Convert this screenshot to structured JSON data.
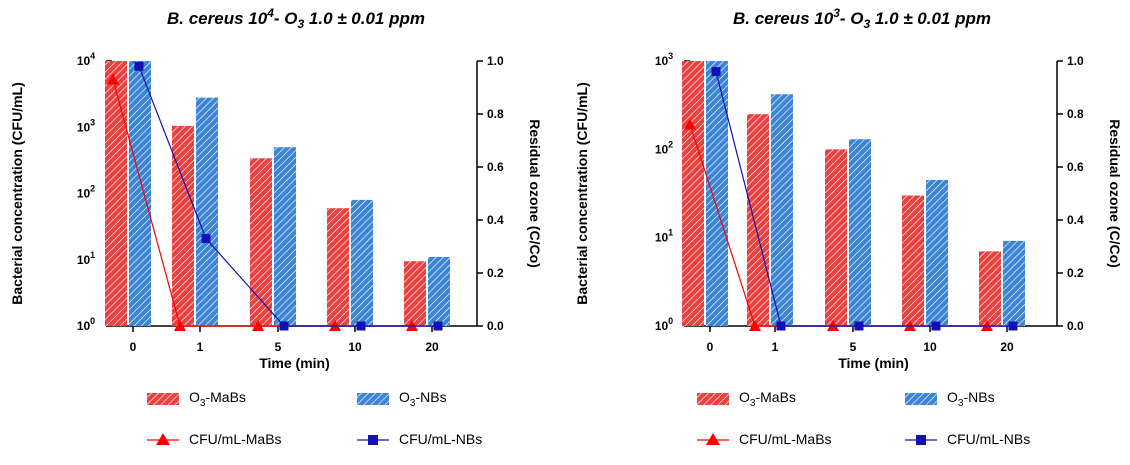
{
  "colors": {
    "mabs": "#e8413f",
    "nbs": "#3b84d6",
    "nbs_line": "#1212b4",
    "mabs_line": "#ff0000",
    "axis": "#000000"
  },
  "chart_data": [
    {
      "type": "bar",
      "title_prefix": "B. cereus 10",
      "title_exp": "4",
      "title_mid": "- O",
      "title_sub": "3",
      "title_suffix": " 1.0 ± 0.01 ppm",
      "xlabel": "Time (min)",
      "ylabel_left": "Bacterial concentration (CFU/mL)",
      "ylabel_right": "Residual ozone (C/Co)",
      "categories": [
        "0",
        "1",
        "5",
        "10",
        "20"
      ],
      "left_axis": {
        "scale": "log",
        "ylim": [
          1,
          10000
        ],
        "ticks": [
          {
            "base": "10",
            "exp": "0"
          },
          {
            "base": "10",
            "exp": "1"
          },
          {
            "base": "10",
            "exp": "2"
          },
          {
            "base": "10",
            "exp": "3"
          },
          {
            "base": "10",
            "exp": "4"
          }
        ]
      },
      "right_axis": {
        "scale": "linear",
        "ylim": [
          0,
          1
        ],
        "ticks": [
          "0.0",
          "0.2",
          "0.4",
          "0.6",
          "0.8",
          "1.0"
        ]
      },
      "bars": [
        {
          "name_main": "O",
          "name_sub": "3",
          "name_rest": "-MaBs",
          "values": [
            10000,
            1050,
            340,
            60,
            9.5
          ]
        },
        {
          "name_main": "O",
          "name_sub": "3",
          "name_rest": "-NBs",
          "values": [
            10000,
            2800,
            500,
            80,
            11
          ]
        }
      ],
      "lines": [
        {
          "name": "CFU/mL-MaBs",
          "marker": "triangle",
          "values": [
            0.93,
            0,
            0,
            0,
            0
          ]
        },
        {
          "name": "CFU/mL-NBs",
          "marker": "square",
          "values": [
            0.98,
            0.33,
            0,
            0,
            0
          ]
        }
      ]
    },
    {
      "type": "bar",
      "title_prefix": "B. cereus 10",
      "title_exp": "3",
      "title_mid": "- O",
      "title_sub": "3",
      "title_suffix": " 1.0 ± 0.01 ppm",
      "xlabel": "Time (min)",
      "ylabel_left": "Bacterial concentration (CFU/mL)",
      "ylabel_right": "Residual ozone (C/Co)",
      "categories": [
        "0",
        "1",
        "5",
        "10",
        "20"
      ],
      "left_axis": {
        "scale": "log",
        "ylim": [
          1,
          1000
        ],
        "ticks": [
          {
            "base": "10",
            "exp": "0"
          },
          {
            "base": "10",
            "exp": "1"
          },
          {
            "base": "10",
            "exp": "2"
          },
          {
            "base": "10",
            "exp": "3"
          }
        ]
      },
      "right_axis": {
        "scale": "linear",
        "ylim": [
          0,
          1
        ],
        "ticks": [
          "0.0",
          "0.2",
          "0.4",
          "0.6",
          "0.8",
          "1.0"
        ]
      },
      "bars": [
        {
          "name_main": "O",
          "name_sub": "3",
          "name_rest": "-MaBs",
          "values": [
            1000,
            250,
            100,
            30,
            7
          ]
        },
        {
          "name_main": "O",
          "name_sub": "3",
          "name_rest": "-NBs",
          "values": [
            1000,
            420,
            130,
            45,
            9.2
          ]
        }
      ],
      "lines": [
        {
          "name": "CFU/mL-MaBs",
          "marker": "triangle",
          "values": [
            0.76,
            0,
            0,
            0,
            0
          ]
        },
        {
          "name": "CFU/mL-NBs",
          "marker": "square",
          "values": [
            0.96,
            0,
            0,
            0,
            0
          ]
        }
      ]
    }
  ]
}
